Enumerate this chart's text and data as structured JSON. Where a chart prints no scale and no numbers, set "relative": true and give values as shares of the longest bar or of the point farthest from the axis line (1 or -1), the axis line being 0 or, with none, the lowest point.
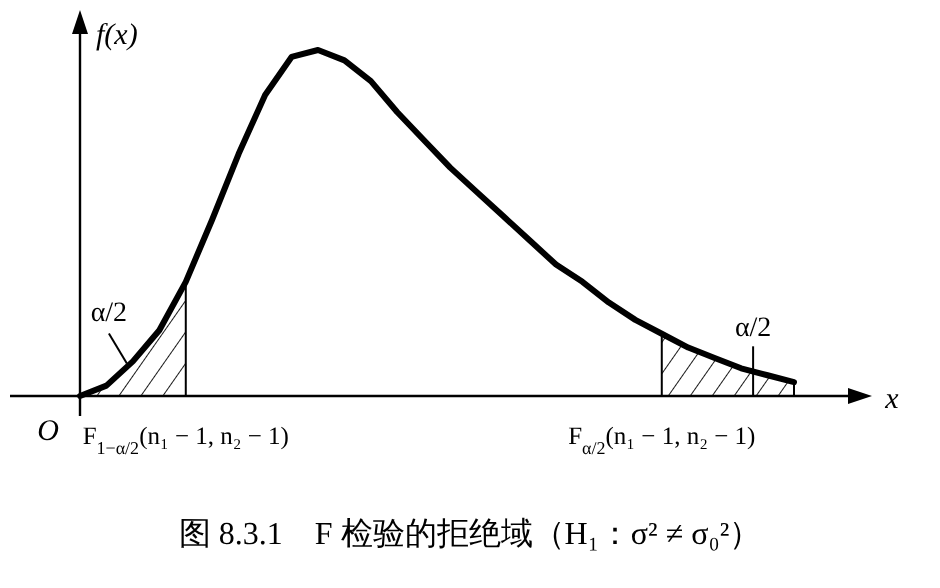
{
  "chart_data": {
    "type": "line",
    "relative": true,
    "title": "图 8.3.1　F 检验的拒绝域（H₁：σ² ≠ σ₀²）",
    "xlabel": "x",
    "ylabel": "f(x)",
    "categories": [
      null,
      null,
      null,
      null,
      "F$_{1−α/2}$(n₁ − 1, n₂ − 1)",
      null,
      null,
      null,
      null,
      null,
      null,
      null,
      null,
      null,
      null,
      null,
      null,
      null,
      null,
      null,
      null,
      null,
      "F$_{α/2}$(n₁ − 1, n₂ − 1)",
      null,
      null,
      null,
      null,
      null
    ],
    "series": [
      {
        "color": "#000000",
        "values": [
          0,
          0.03,
          0.1,
          0.19,
          0.33,
          0.51,
          0.7,
          0.87,
          0.98,
          1,
          0.97,
          0.91,
          0.82,
          0.74,
          0.66,
          0.59,
          0.52,
          0.45,
          0.38,
          0.33,
          0.27,
          0.22,
          0.18,
          0.14,
          0.11,
          0.08,
          0.06,
          0.04
        ],
        "lower": [
          0,
          0,
          0,
          0,
          0,
          null,
          null,
          null,
          null,
          null,
          null,
          null,
          null,
          null,
          null,
          null,
          null,
          null,
          null,
          null,
          null,
          null,
          0,
          0,
          0,
          0,
          0,
          0
        ],
        "upper": [
          0,
          0.03,
          0.1,
          0.19,
          0.33,
          null,
          null,
          null,
          null,
          null,
          null,
          null,
          null,
          null,
          null,
          null,
          null,
          null,
          null,
          null,
          null,
          null,
          0.18,
          0.14,
          0.11,
          0.08,
          0.06,
          0.04
        ]
      }
    ],
    "annotations": [
      "α/2",
      "α/2",
      "O"
    ]
  }
}
